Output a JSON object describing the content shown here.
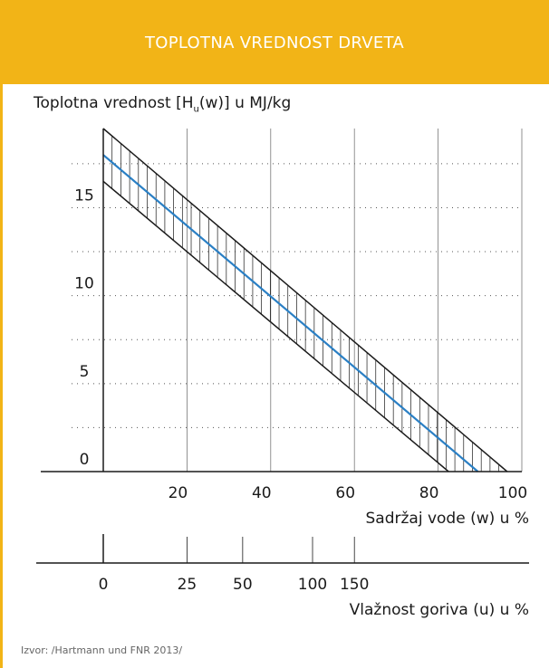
{
  "header": {
    "title": "TOPLOTNA VREDNOST DRVETA"
  },
  "source": "Izvor: /Hartmann und FNR 2013/",
  "chart_data": {
    "type": "line",
    "ylabel_parts": {
      "prefix": "Toplotna vrednost [H",
      "sub": "u",
      "suffix": "(w)] u MJ/kg"
    },
    "xlabel": "Sadržaj vode (w) u %",
    "xlabel2": "Vlažnost goriva (u) u %",
    "y_ticks": [
      "0",
      "5",
      "10",
      "15"
    ],
    "x_ticks": [
      "20",
      "40",
      "60",
      "80",
      "100"
    ],
    "x2_ticks": [
      "0",
      "25",
      "50",
      "100",
      "150"
    ],
    "x2_tick_positions_w": [
      0,
      20,
      33.3,
      50,
      60
    ],
    "xlim": [
      0,
      100
    ],
    "ylim": [
      0,
      19.5
    ],
    "grid_x": true,
    "grid_y": "dotted",
    "series": [
      {
        "x": [
          0,
          89.5
        ],
        "y": [
          18.0,
          0
        ],
        "color": "#2a7fc4"
      }
    ],
    "band": {
      "upper": {
        "x": [
          0,
          96.5
        ],
        "y": [
          19.5,
          0
        ]
      },
      "lower": {
        "x": [
          0,
          82.5
        ],
        "y": [
          16.5,
          0
        ]
      },
      "hatch": "vertical"
    },
    "colors": {
      "accent": "#f2b417",
      "series": "#2a7fc4",
      "band": "#1a1a1a"
    }
  }
}
